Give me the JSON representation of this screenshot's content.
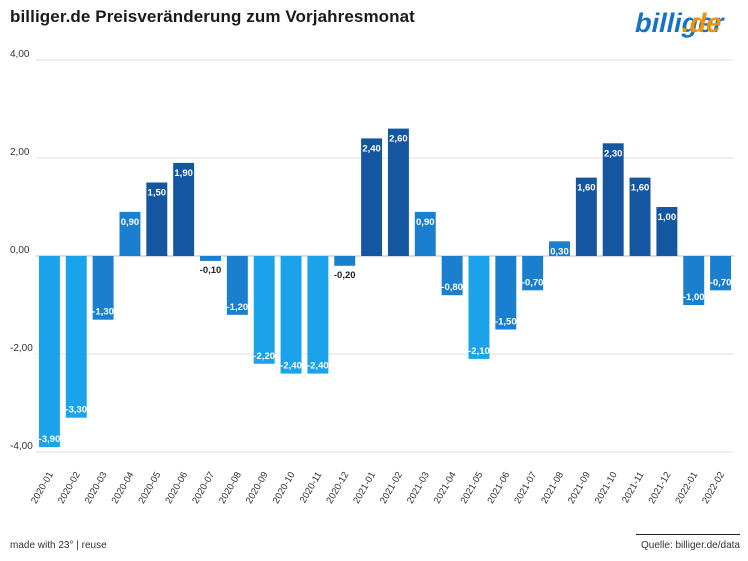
{
  "header": {
    "title": "billiger.de Preisveränderung zum Vorjahresmonat",
    "logo_text": "billiger.de"
  },
  "footer": {
    "made_with": "made with 23° | reuse",
    "source": "Quelle: billiger.de/data"
  },
  "colors": {
    "light_blue": "#1aa3ea",
    "mid_blue": "#1a7fcf",
    "dark_blue": "#1456a0",
    "logo_blue": "#1473c6",
    "logo_orange": "#f39200"
  },
  "chart_data": {
    "type": "bar",
    "title": "billiger.de Preisveränderung zum Vorjahresmonat",
    "xlabel": "",
    "ylabel": "",
    "ylim": [
      -4,
      4
    ],
    "yticks": [
      4,
      2,
      0,
      -2,
      -4
    ],
    "ytick_labels": [
      "4,00",
      "2,00",
      "0,00",
      "-2,00",
      "-4,00"
    ],
    "grid": true,
    "categories": [
      "2020-01",
      "2020-02",
      "2020-03",
      "2020-04",
      "2020-05",
      "2020-06",
      "2020-07",
      "2020-08",
      "2020-09",
      "2020-10",
      "2020-11",
      "2020-12",
      "2021-01",
      "2021-02",
      "2021-03",
      "2021-04",
      "2021-05",
      "2021-06",
      "2021-07",
      "2021-08",
      "2021-09",
      "2021-10",
      "2021-11",
      "2021-12",
      "2022-01",
      "2022-02"
    ],
    "values": [
      -3.9,
      -3.3,
      -1.3,
      0.9,
      1.5,
      1.9,
      -0.1,
      -1.2,
      -2.2,
      -2.4,
      -2.4,
      -0.2,
      2.4,
      2.6,
      0.9,
      -0.8,
      -2.1,
      -1.5,
      -0.7,
      0.3,
      1.6,
      2.3,
      1.6,
      1.0,
      -1.0,
      -0.7
    ],
    "value_labels": [
      "-3,90",
      "-3,30",
      "-1,30",
      "0,90",
      "1,50",
      "1,90",
      "-0,10",
      "-1,20",
      "-2,20",
      "-2,40",
      "-2,40",
      "-0,20",
      "2,40",
      "2,60",
      "0,90",
      "-0,80",
      "-2,10",
      "-1,50",
      "-0,70",
      "0,30",
      "1,60",
      "2,30",
      "1,60",
      "1,00",
      "-1,00",
      "-0,70"
    ]
  }
}
